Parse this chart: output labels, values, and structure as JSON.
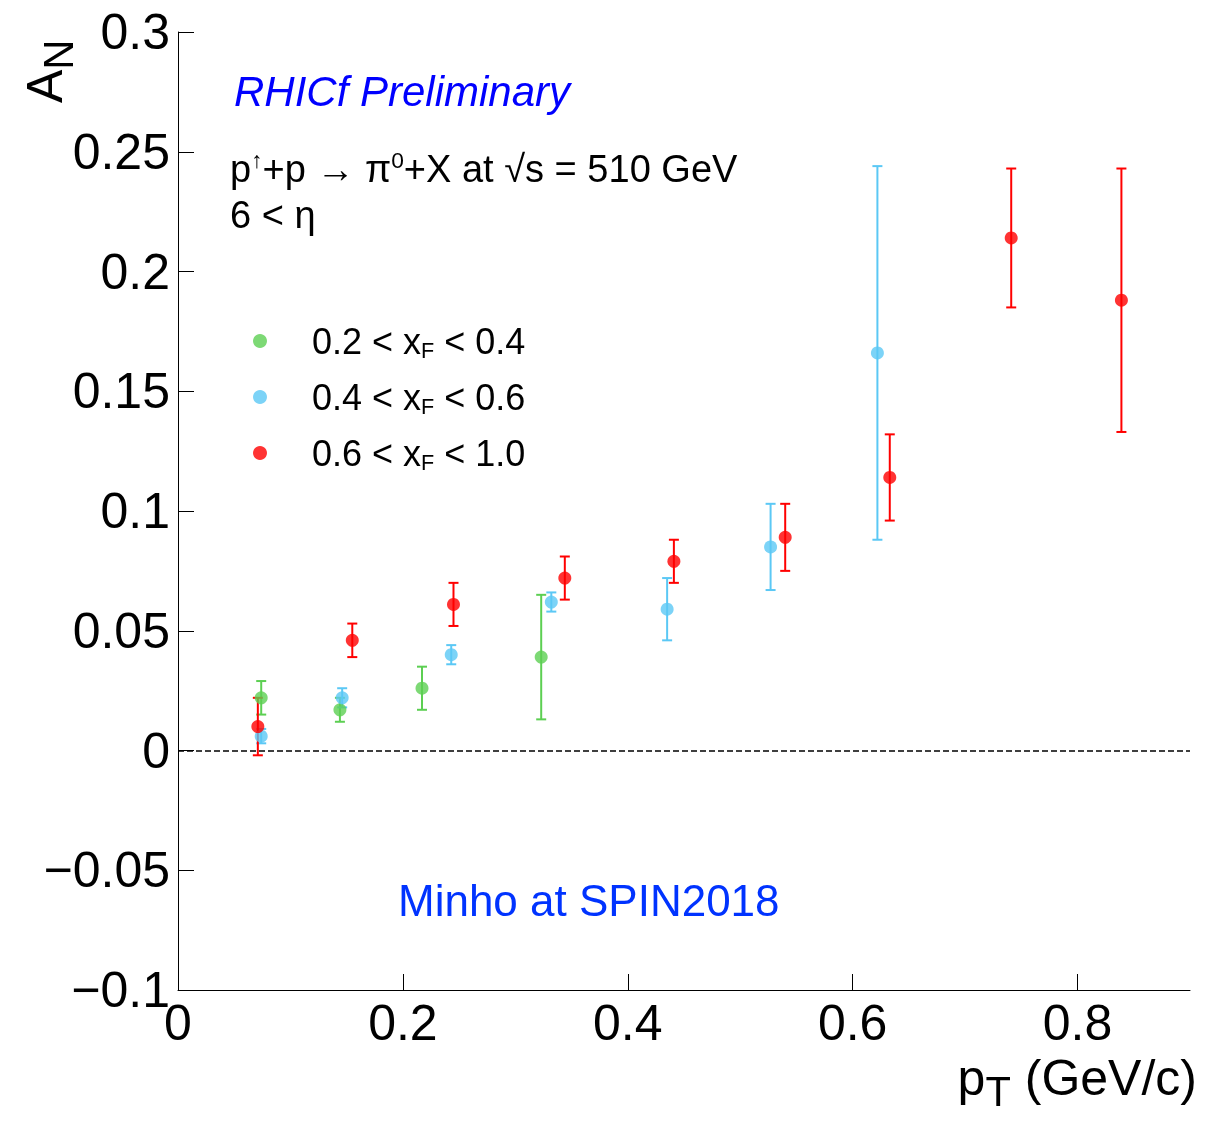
{
  "chart_data": {
    "type": "scatter",
    "xlabel": "p$_{T}$ (GeV/c)",
    "ylabel": "A$_{N}$",
    "xlim": [
      0,
      0.9
    ],
    "xticks": [
      0,
      0.2,
      0.4,
      0.6,
      0.8
    ],
    "ylim": [
      -0.1,
      0.3
    ],
    "yticks": [
      {
        "value": -0.1,
        "label": "−0.1"
      },
      {
        "value": -0.05,
        "label": "−0.05"
      },
      0,
      0.05,
      0.1,
      0.15,
      0.2,
      0.25,
      0.3
    ],
    "grid": false,
    "legend": "top left",
    "marker": "circle",
    "ref_lines": [
      {
        "axis": "y",
        "value": 0,
        "color": "#000000",
        "line_style": "dashed"
      }
    ],
    "annotations": [
      "RHICf Preliminary",
      "p$^{↑}$+p → π$^{0}$+X at √s = 510 GeV",
      "6 < η",
      "Minho at SPIN2018"
    ],
    "series": [
      {
        "name": "0.2 < x$_{F}$ < 0.4",
        "color": "#5ccf52",
        "x": [
          0.074,
          0.144,
          0.217,
          0.323
        ],
        "values": [
          0.022,
          0.017,
          0.026,
          0.039
        ],
        "errors": [
          0.007,
          0.005,
          0.009,
          0.026
        ]
      },
      {
        "name": "0.4 < x$_{F}$ < 0.6",
        "color": "#5bc8f5",
        "x": [
          0.074,
          0.146,
          0.243,
          0.332,
          0.435,
          0.527,
          0.622
        ],
        "values": [
          0.006,
          0.022,
          0.04,
          0.062,
          0.059,
          0.085,
          0.166
        ],
        "errors": [
          0.003,
          0.004,
          0.004,
          0.004,
          0.013,
          0.018,
          0.078
        ]
      },
      {
        "name": "0.6 < x$_{F}$ < 1.0",
        "color": "#ff0000",
        "x": [
          0.071,
          0.155,
          0.245,
          0.344,
          0.441,
          0.54,
          0.633,
          0.741,
          0.839
        ],
        "values": [
          0.01,
          0.046,
          0.061,
          0.072,
          0.079,
          0.089,
          0.114,
          0.214,
          0.188
        ],
        "errors": [
          0.012,
          0.007,
          0.009,
          0.009,
          0.009,
          0.014,
          0.018,
          0.029,
          0.055
        ]
      }
    ]
  }
}
